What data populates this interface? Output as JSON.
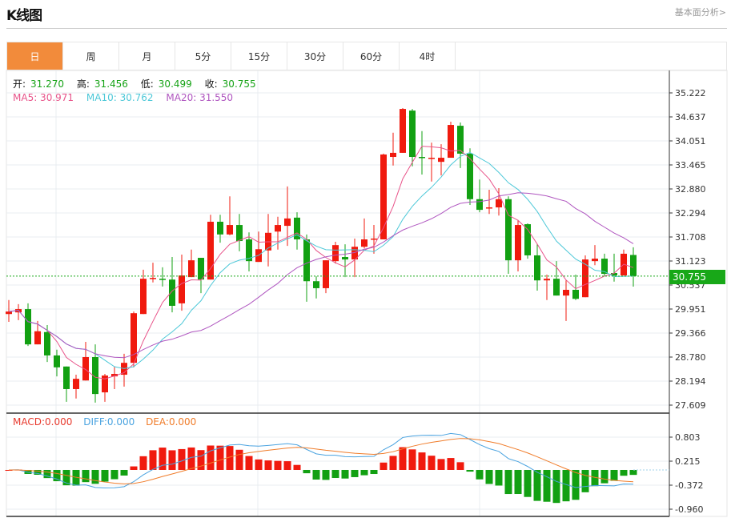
{
  "header": {
    "title": "K线图",
    "fundamental_link": "基本面分析>"
  },
  "tabs": [
    {
      "label": "日",
      "active": true
    },
    {
      "label": "周"
    },
    {
      "label": "月"
    },
    {
      "label": "5分"
    },
    {
      "label": "15分"
    },
    {
      "label": "30分"
    },
    {
      "label": "60分"
    },
    {
      "label": "4时"
    }
  ],
  "ohlc": {
    "open_label": "开:",
    "open": "31.270",
    "high_label": "高:",
    "high": "31.456",
    "low_label": "低:",
    "low": "30.499",
    "close_label": "收:",
    "close": "30.755"
  },
  "ma": {
    "ma5": "MA5: 30.971",
    "ma10": "MA10: 30.762",
    "ma20": "MA20: 31.550"
  },
  "macd": {
    "macd": "MACD:0.000",
    "diff": "DIFF:0.000",
    "dea": "DEA:0.000"
  },
  "current_price": "30.755",
  "colors": {
    "up": "#f01a0e",
    "down": "#12a012",
    "ma5": "#e8548a",
    "ma10": "#4dc8d8",
    "ma20": "#b057c0",
    "diff": "#4aa3e0",
    "dea": "#f07c2a",
    "accent": "#f28b3b"
  },
  "chart_data": [
    {
      "type": "candlestick",
      "price_ticks": [
        "35.222",
        "34.637",
        "34.051",
        "33.465",
        "32.880",
        "32.294",
        "31.708",
        "31.123",
        "30.537",
        "29.951",
        "29.366",
        "28.780",
        "28.194",
        "27.609"
      ],
      "ylim": [
        27.609,
        35.222
      ],
      "grid": true,
      "candles": [
        [
          29.83,
          29.89,
          30.17,
          29.64
        ],
        [
          29.87,
          29.95,
          30.07,
          29.68
        ],
        [
          29.95,
          29.09,
          30.09,
          29.05
        ],
        [
          29.09,
          29.41,
          29.66,
          29.09
        ],
        [
          29.39,
          28.82,
          29.56,
          28.66
        ],
        [
          28.82,
          28.53,
          28.96,
          28.31
        ],
        [
          28.55,
          28.0,
          28.55,
          27.69
        ],
        [
          28.0,
          28.25,
          28.35,
          27.77
        ],
        [
          28.21,
          28.78,
          29.15,
          28.21
        ],
        [
          28.78,
          27.88,
          29.09,
          27.67
        ],
        [
          27.92,
          28.33,
          28.37,
          27.69
        ],
        [
          28.31,
          28.37,
          28.55,
          28.0
        ],
        [
          28.35,
          28.64,
          28.86,
          28.06
        ],
        [
          28.64,
          29.85,
          29.89,
          28.53
        ],
        [
          29.83,
          30.69,
          30.91,
          29.83
        ],
        [
          30.69,
          30.71,
          31.08,
          30.6
        ],
        [
          30.69,
          30.67,
          30.97,
          30.5
        ],
        [
          30.67,
          30.03,
          31.22,
          29.87
        ],
        [
          30.09,
          30.77,
          31.28,
          29.91
        ],
        [
          30.73,
          31.14,
          31.4,
          30.73
        ],
        [
          31.2,
          30.67,
          31.2,
          30.34
        ],
        [
          30.67,
          32.08,
          32.25,
          30.67
        ],
        [
          32.08,
          31.77,
          32.25,
          31.57
        ],
        [
          31.77,
          32.0,
          32.7,
          31.75
        ],
        [
          32.0,
          31.61,
          32.27,
          31.36
        ],
        [
          31.65,
          31.12,
          31.82,
          30.87
        ],
        [
          31.1,
          31.41,
          31.84,
          31.1
        ],
        [
          31.38,
          31.81,
          32.27,
          30.99
        ],
        [
          31.84,
          32.0,
          32.2,
          31.4
        ],
        [
          31.98,
          32.16,
          32.94,
          31.49
        ],
        [
          32.18,
          31.65,
          32.31,
          31.4
        ],
        [
          31.65,
          30.63,
          31.77,
          30.13
        ],
        [
          30.63,
          30.46,
          30.75,
          30.21
        ],
        [
          30.46,
          31.14,
          31.14,
          30.34
        ],
        [
          31.12,
          31.51,
          31.59,
          31.06
        ],
        [
          31.22,
          31.16,
          31.53,
          30.73
        ],
        [
          31.16,
          31.47,
          31.67,
          30.73
        ],
        [
          31.47,
          31.65,
          32.16,
          31.43
        ],
        [
          31.65,
          31.67,
          32.0,
          31.3
        ],
        [
          31.65,
          33.72,
          33.74,
          31.65
        ],
        [
          33.66,
          33.76,
          34.25,
          33.45
        ],
        [
          33.76,
          34.83,
          34.85,
          33.76
        ],
        [
          34.79,
          33.66,
          34.83,
          33.43
        ],
        [
          33.66,
          33.64,
          34.29,
          33.23
        ],
        [
          33.62,
          33.64,
          34.01,
          33.06
        ],
        [
          33.54,
          33.64,
          33.97,
          33.21
        ],
        [
          33.64,
          34.44,
          34.52,
          33.64
        ],
        [
          34.42,
          33.74,
          34.5,
          33.39
        ],
        [
          33.74,
          32.63,
          33.87,
          32.49
        ],
        [
          32.63,
          32.37,
          33.11,
          32.31
        ],
        [
          32.41,
          32.43,
          32.86,
          32.27
        ],
        [
          32.43,
          32.63,
          32.9,
          32.23
        ],
        [
          32.63,
          31.14,
          32.7,
          30.81
        ],
        [
          31.14,
          32.0,
          32.12,
          30.87
        ],
        [
          32.02,
          31.26,
          32.04,
          31.18
        ],
        [
          31.26,
          30.65,
          31.53,
          30.4
        ],
        [
          30.65,
          30.69,
          30.79,
          30.17
        ],
        [
          30.69,
          30.28,
          31.12,
          30.28
        ],
        [
          30.28,
          30.42,
          30.65,
          29.66
        ],
        [
          30.42,
          30.2,
          30.79,
          30.17
        ],
        [
          30.24,
          31.16,
          31.26,
          30.24
        ],
        [
          31.12,
          31.18,
          31.51,
          31.02
        ],
        [
          31.18,
          30.81,
          31.3,
          30.75
        ],
        [
          30.83,
          30.77,
          31.3,
          30.62
        ],
        [
          30.77,
          31.3,
          31.4,
          30.77
        ],
        [
          31.27,
          30.755,
          31.456,
          30.499
        ]
      ],
      "moving_averages": [
        5,
        10,
        20
      ]
    },
    {
      "type": "macd",
      "ticks": [
        "0.803",
        "0.215",
        "-0.372",
        "-0.960"
      ],
      "ylim": [
        -0.96,
        0.803
      ]
    }
  ]
}
